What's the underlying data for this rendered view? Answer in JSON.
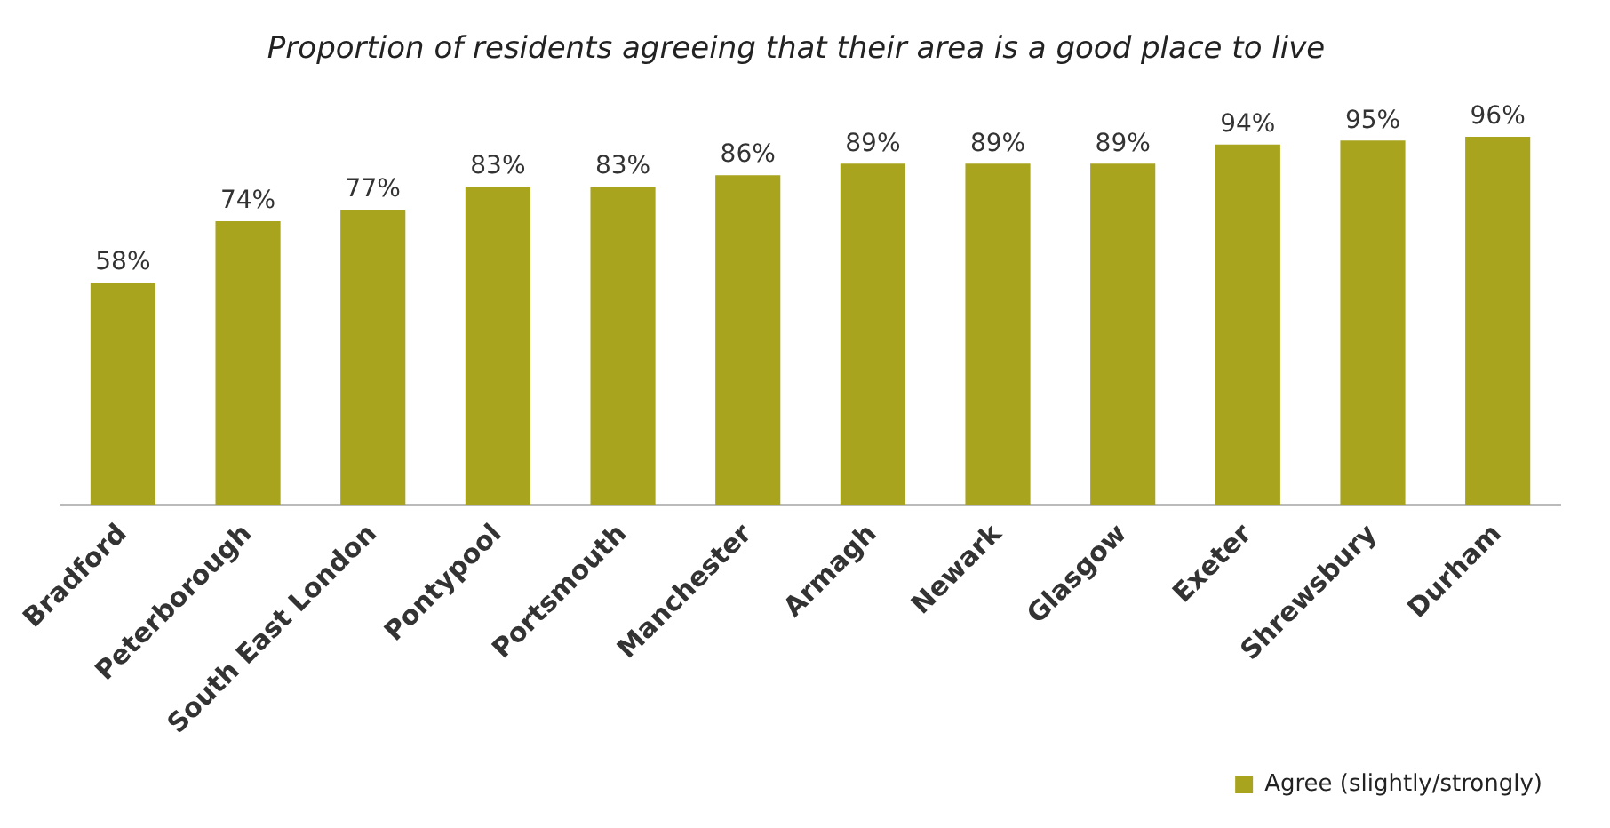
{
  "chart_data": {
    "type": "bar",
    "title": "Proportion of residents agreeing that their area is a good place to live",
    "categories": [
      "Bradford",
      "Peterborough",
      "South East London",
      "Pontypool",
      "Portsmouth",
      "Manchester",
      "Armagh",
      "Newark",
      "Glasgow",
      "Exeter",
      "Shrewsbury",
      "Durham"
    ],
    "series": [
      {
        "name": "Agree (slightly/strongly)",
        "color": "#a8a41e",
        "values": [
          58,
          74,
          77,
          83,
          83,
          86,
          89,
          89,
          89,
          94,
          95,
          96
        ],
        "value_labels": [
          "58%",
          "74%",
          "77%",
          "83%",
          "83%",
          "86%",
          "89%",
          "89%",
          "89%",
          "94%",
          "95%",
          "96%"
        ]
      }
    ],
    "legend": "bottom right",
    "grid": false,
    "tick_labels": "x"
  }
}
